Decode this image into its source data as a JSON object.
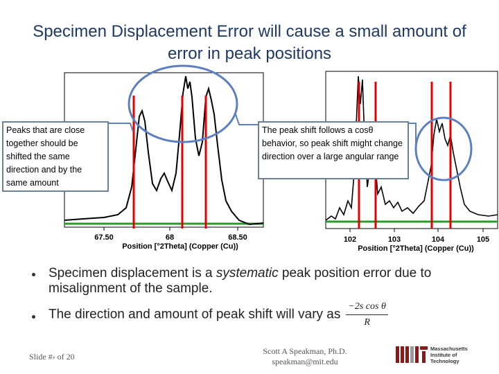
{
  "title": "Specimen Displacement Error will cause a small amount of error in peak positions",
  "plots": [
    {
      "xtick_labels": [
        "67.50",
        "68",
        "68.50"
      ],
      "xlabel": "Position [°2Theta] (Copper (Cu))"
    },
    {
      "xtick_labels": [
        "102",
        "103",
        "104",
        "105"
      ],
      "xlabel": "Position [°2Theta] (Copper (Cu))"
    }
  ],
  "callouts": [
    "Peaks that are close together should be shifted the same direction and by the same amount",
    "The peak shift follows a cosθ behavior, so peak shift might change direction over a large angular range"
  ],
  "bullets": [
    {
      "parts": [
        "Specimen displacement is a ",
        "systematic",
        " peak position error due to misalignment of the sample."
      ]
    },
    {
      "text": "The direction and amount of peak shift will vary as",
      "formula": {
        "numerator": "−2s cos θ",
        "denominator": "R"
      }
    }
  ],
  "footer": {
    "slide": "Slide #› of 20",
    "author": "Scott A Speakman, Ph.D.",
    "email": "speakman@mit.edu",
    "logo_text": [
      "Massachusetts",
      "Institute of",
      "Technology"
    ]
  }
}
